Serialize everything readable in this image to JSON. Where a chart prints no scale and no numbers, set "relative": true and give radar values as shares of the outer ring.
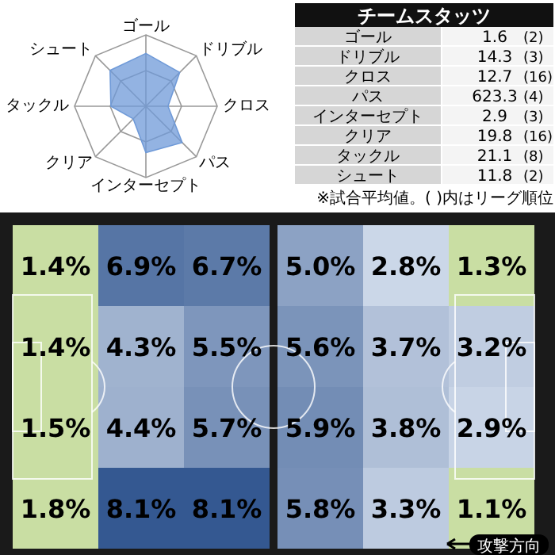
{
  "chart_data": [
    {
      "type": "radar",
      "relative": true,
      "categories": [
        "ゴール",
        "ドリブル",
        "クロス",
        "パス",
        "インターセプト",
        "クリア",
        "タックル",
        "シュート"
      ],
      "series": [
        {
          "color": "#6f9ad8",
          "values": [
            0.74,
            0.67,
            0.31,
            0.72,
            0.65,
            0.25,
            0.49,
            0.71
          ]
        }
      ]
    },
    {
      "type": "other",
      "title": "チームスタッツ",
      "categories": [
        "ゴール",
        "ドリブル",
        "クロス",
        "パス",
        "インターセプト",
        "クリア",
        "タックル",
        "シュート"
      ],
      "data_labels": true,
      "series": [
        {
          "values": [
            1.6,
            14.3,
            12.7,
            623.3,
            2.9,
            19.8,
            21.1,
            11.8
          ]
        },
        {
          "values": [
            2,
            3,
            16,
            4,
            3,
            16,
            8,
            2
          ],
          "value_labels": [
            "(2)",
            "(3)",
            "(16)",
            "(4)",
            "(3)",
            "(16)",
            "(8)",
            "(2)"
          ]
        }
      ],
      "annotations": [
        "※試合平均値。(  )内はリーグ順位"
      ]
    },
    {
      "type": "heatmap",
      "categories": [
        null,
        null,
        null,
        null,
        null,
        null
      ],
      "y_categories": [
        null,
        null,
        null,
        null
      ],
      "cells": [
        [
          1.4,
          6.9,
          6.7,
          5.0,
          2.8,
          1.3
        ],
        [
          1.4,
          4.3,
          5.5,
          5.6,
          3.7,
          3.2
        ],
        [
          1.5,
          4.4,
          5.7,
          5.9,
          3.8,
          2.9
        ],
        [
          1.8,
          8.1,
          8.1,
          5.8,
          3.3,
          1.1
        ]
      ],
      "cell_labels": [
        [
          "1.4%",
          "6.9%",
          "6.7%",
          "5.0%",
          "2.8%",
          "1.3%"
        ],
        [
          "1.4%",
          "4.3%",
          "5.5%",
          "5.6%",
          "3.7%",
          "3.2%"
        ],
        [
          "1.5%",
          "4.4%",
          "5.7%",
          "5.9%",
          "3.8%",
          "2.9%"
        ],
        [
          "1.8%",
          "8.1%",
          "8.1%",
          "5.8%",
          "3.3%",
          "1.1%"
        ]
      ],
      "annotations": [
        "攻撃方向"
      ]
    }
  ]
}
